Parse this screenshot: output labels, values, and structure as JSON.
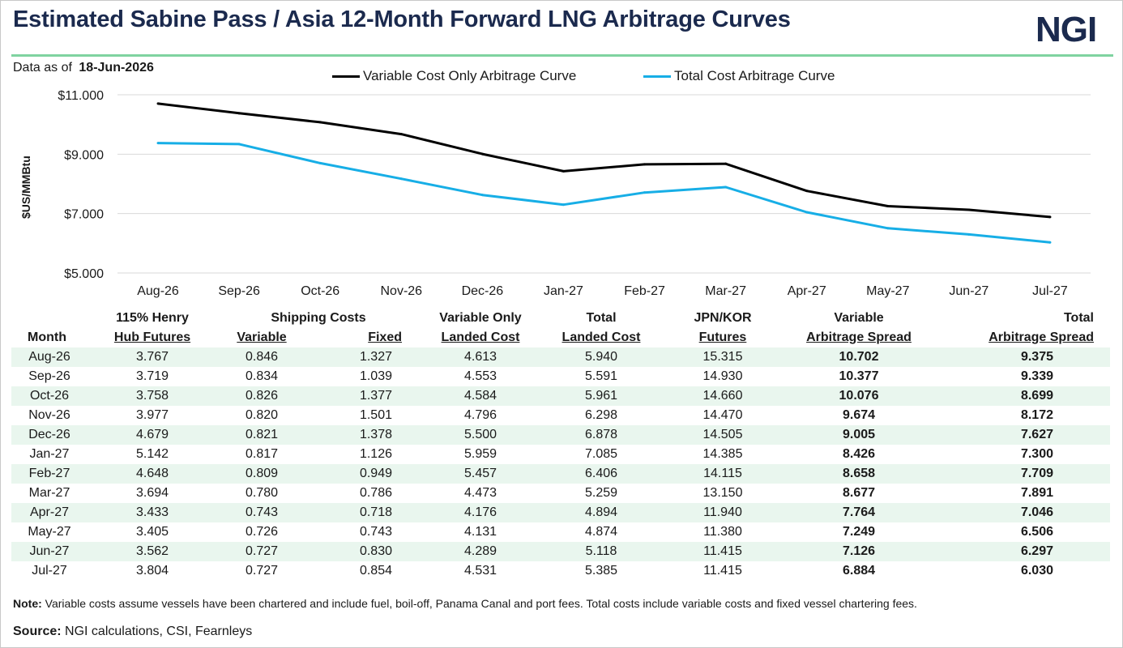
{
  "header": {
    "title": "Estimated Sabine Pass / Asia 12-Month Forward LNG Arbitrage Curves",
    "logo": "NGI",
    "as_of_label": "Data as of",
    "as_of_date": "18-Jun-2026"
  },
  "colors": {
    "variable": "#000000",
    "total": "#17aee6",
    "rule": "#7fd3a0",
    "row_band": "#e9f6ee",
    "title": "#1b2a4e"
  },
  "chart_data": {
    "type": "line",
    "x": [
      "Aug-26",
      "Sep-26",
      "Oct-26",
      "Nov-26",
      "Dec-26",
      "Jan-27",
      "Feb-27",
      "Mar-27",
      "Apr-27",
      "May-27",
      "Jun-27",
      "Jul-27"
    ],
    "series": [
      {
        "name": "Variable Cost Only Arbitrage Curve",
        "color": "#000000",
        "values": [
          10.702,
          10.377,
          10.076,
          9.674,
          9.005,
          8.426,
          8.658,
          8.677,
          7.764,
          7.249,
          7.126,
          6.884
        ]
      },
      {
        "name": "Total Cost Arbitrage Curve",
        "color": "#17aee6",
        "values": [
          9.375,
          9.339,
          8.699,
          8.172,
          7.627,
          7.3,
          7.709,
          7.891,
          7.046,
          6.506,
          6.297,
          6.03
        ]
      }
    ],
    "ylabel": "$US/MMBtu",
    "ylim": [
      5,
      11
    ],
    "yticks": [
      5,
      7,
      9,
      11
    ],
    "ytick_labels": [
      "$5.000",
      "$7.000",
      "$9.000",
      "$11.000"
    ],
    "grid": true,
    "legend": "top-center"
  },
  "table": {
    "headers": {
      "month": "Month",
      "hh_line1": "115% Henry",
      "hh_line2": "Hub Futures",
      "shipping": "Shipping Costs",
      "variable": "Variable",
      "fixed": "Fixed",
      "vol_line1": "Variable Only",
      "vol_line2": "Landed Cost",
      "tlc_line1": "Total",
      "tlc_line2": "Landed Cost",
      "jk_line1": "JPN/KOR",
      "jk_line2": "Futures",
      "vas_line1": "Variable",
      "vas_line2": "Arbitrage Spread",
      "tas_line1": "Total",
      "tas_line2": "Arbitrage Spread"
    },
    "rows": [
      [
        "Aug-26",
        "3.767",
        "0.846",
        "1.327",
        "4.613",
        "5.940",
        "15.315",
        "10.702",
        "9.375"
      ],
      [
        "Sep-26",
        "3.719",
        "0.834",
        "1.039",
        "4.553",
        "5.591",
        "14.930",
        "10.377",
        "9.339"
      ],
      [
        "Oct-26",
        "3.758",
        "0.826",
        "1.377",
        "4.584",
        "5.961",
        "14.660",
        "10.076",
        "8.699"
      ],
      [
        "Nov-26",
        "3.977",
        "0.820",
        "1.501",
        "4.796",
        "6.298",
        "14.470",
        "9.674",
        "8.172"
      ],
      [
        "Dec-26",
        "4.679",
        "0.821",
        "1.378",
        "5.500",
        "6.878",
        "14.505",
        "9.005",
        "7.627"
      ],
      [
        "Jan-27",
        "5.142",
        "0.817",
        "1.126",
        "5.959",
        "7.085",
        "14.385",
        "8.426",
        "7.300"
      ],
      [
        "Feb-27",
        "4.648",
        "0.809",
        "0.949",
        "5.457",
        "6.406",
        "14.115",
        "8.658",
        "7.709"
      ],
      [
        "Mar-27",
        "3.694",
        "0.780",
        "0.786",
        "4.473",
        "5.259",
        "13.150",
        "8.677",
        "7.891"
      ],
      [
        "Apr-27",
        "3.433",
        "0.743",
        "0.718",
        "4.176",
        "4.894",
        "11.940",
        "7.764",
        "7.046"
      ],
      [
        "May-27",
        "3.405",
        "0.726",
        "0.743",
        "4.131",
        "4.874",
        "11.380",
        "7.249",
        "6.506"
      ],
      [
        "Jun-27",
        "3.562",
        "0.727",
        "0.830",
        "4.289",
        "5.118",
        "11.415",
        "7.126",
        "6.297"
      ],
      [
        "Jul-27",
        "3.804",
        "0.727",
        "0.854",
        "4.531",
        "5.385",
        "11.415",
        "6.884",
        "6.030"
      ]
    ]
  },
  "footer": {
    "note_label": "Note:",
    "note_text": " Variable costs assume vessels have been chartered and include fuel, boil-off, Panama Canal and port fees. Total costs include variable costs and fixed vessel chartering fees.",
    "source_label": "Source:",
    "source_text": " NGI calculations, CSI, Fearnleys"
  }
}
